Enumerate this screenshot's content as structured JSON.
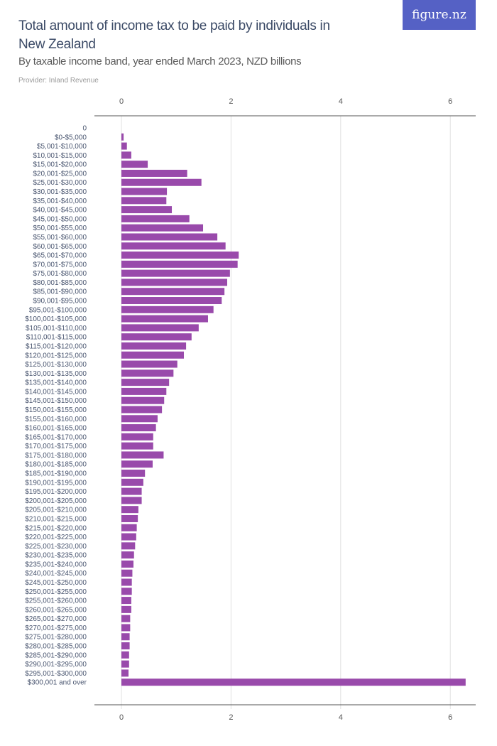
{
  "header": {
    "title": "Total amount of income tax to be paid by individuals in New Zealand",
    "subtitle": "By taxable income band, year ended March 2023, NZD billions",
    "provider": "Provider: Inland Revenue",
    "logo": "figure.nz"
  },
  "chart_data": {
    "type": "bar",
    "orientation": "horizontal",
    "title": "Total amount of income tax to be paid by individuals in New Zealand",
    "subtitle": "By taxable income band, year ended March 2023, NZD billions",
    "xlim": [
      0,
      6.4
    ],
    "xticks": [
      0,
      2,
      4,
      6
    ],
    "grid": true,
    "bar_color": "#994aab",
    "categories": [
      "0",
      "$0-$5,000",
      "$5,001-$10,000",
      "$10,001-$15,000",
      "$15,001-$20,000",
      "$20,001-$25,000",
      "$25,001-$30,000",
      "$30,001-$35,000",
      "$35,001-$40,000",
      "$40,001-$45,000",
      "$45,001-$50,000",
      "$50,001-$55,000",
      "$55,001-$60,000",
      "$60,001-$65,000",
      "$65,001-$70,000",
      "$70,001-$75,000",
      "$75,001-$80,000",
      "$80,001-$85,000",
      "$85,001-$90,000",
      "$90,001-$95,000",
      "$95,001-$100,000",
      "$100,001-$105,000",
      "$105,001-$110,000",
      "$110,001-$115,000",
      "$115,001-$120,000",
      "$120,001-$125,000",
      "$125,001-$130,000",
      "$130,001-$135,000",
      "$135,001-$140,000",
      "$140,001-$145,000",
      "$145,001-$150,000",
      "$150,001-$155,000",
      "$155,001-$160,000",
      "$160,001-$165,000",
      "$165,001-$170,000",
      "$170,001-$175,000",
      "$175,001-$180,000",
      "$180,001-$185,000",
      "$185,001-$190,000",
      "$190,001-$195,000",
      "$195,001-$200,000",
      "$200,001-$205,000",
      "$205,001-$210,000",
      "$210,001-$215,000",
      "$215,001-$220,000",
      "$220,001-$225,000",
      "$225,001-$230,000",
      "$230,001-$235,000",
      "$235,001-$240,000",
      "$240,001-$245,000",
      "$245,001-$250,000",
      "$250,001-$255,000",
      "$255,001-$260,000",
      "$260,001-$265,000",
      "$265,001-$270,000",
      "$270,001-$275,000",
      "$275,001-$280,000",
      "$280,001-$285,000",
      "$285,001-$290,000",
      "$290,001-$295,000",
      "$295,001-$300,000",
      "$300,001 and over"
    ],
    "values": [
      0,
      0.04,
      0.1,
      0.18,
      0.48,
      1.2,
      1.46,
      0.83,
      0.82,
      0.92,
      1.24,
      1.49,
      1.75,
      1.9,
      2.14,
      2.12,
      1.98,
      1.93,
      1.88,
      1.83,
      1.68,
      1.58,
      1.41,
      1.28,
      1.18,
      1.14,
      1.02,
      0.95,
      0.87,
      0.82,
      0.78,
      0.74,
      0.66,
      0.63,
      0.58,
      0.58,
      0.77,
      0.57,
      0.43,
      0.4,
      0.37,
      0.37,
      0.31,
      0.3,
      0.28,
      0.27,
      0.25,
      0.23,
      0.22,
      0.2,
      0.19,
      0.19,
      0.18,
      0.18,
      0.16,
      0.16,
      0.15,
      0.15,
      0.14,
      0.14,
      0.13,
      6.28
    ]
  }
}
